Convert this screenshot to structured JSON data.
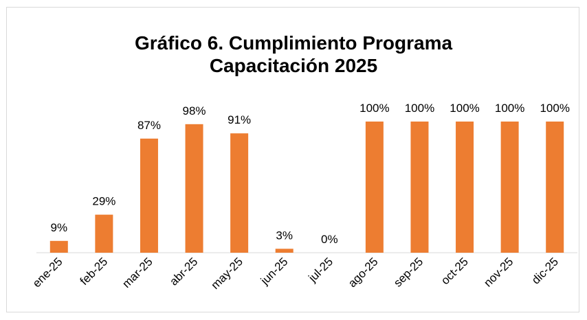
{
  "chart_data": {
    "type": "bar",
    "title": "Gráfico 6. Cumplimiento Programa Capacitación 2025",
    "categories": [
      "ene-25",
      "feb-25",
      "mar-25",
      "abr-25",
      "may-25",
      "jun-25",
      "jul-25",
      "ago-25",
      "sep-25",
      "oct-25",
      "nov-25",
      "dic-25"
    ],
    "values": [
      9,
      29,
      87,
      98,
      91,
      3,
      0,
      100,
      100,
      100,
      100,
      100
    ],
    "value_labels": [
      "9%",
      "29%",
      "87%",
      "98%",
      "91%",
      "3%",
      "0%",
      "100%",
      "100%",
      "100%",
      "100%",
      "100%"
    ],
    "color": "#ed7d31"
  }
}
